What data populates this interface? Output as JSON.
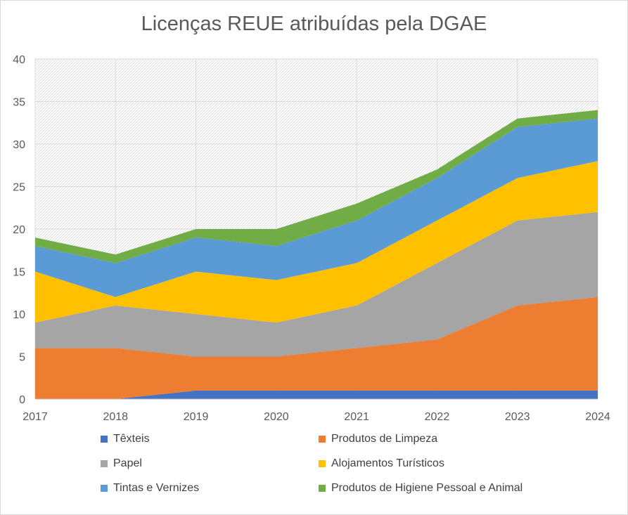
{
  "chart_data": {
    "type": "area",
    "stacked": true,
    "title": "Licenças REUE atribuídas pela DGAE",
    "xlabel": "",
    "ylabel": "",
    "categories": [
      "2017",
      "2018",
      "2019",
      "2020",
      "2021",
      "2022",
      "2023",
      "2024"
    ],
    "ylim": [
      0,
      40
    ],
    "yticks": [
      0,
      5,
      10,
      15,
      20,
      25,
      30,
      35,
      40
    ],
    "grid": true,
    "legend_position": "bottom",
    "series": [
      {
        "name": "Têxteis",
        "color": "#4472C4",
        "values": [
          0,
          0,
          1,
          1,
          1,
          1,
          1,
          1
        ]
      },
      {
        "name": "Produtos de Limpeza",
        "color": "#ED7D31",
        "values": [
          6,
          6,
          4,
          4,
          5,
          6,
          10,
          11
        ]
      },
      {
        "name": "Papel",
        "color": "#A5A5A5",
        "values": [
          3,
          5,
          5,
          4,
          5,
          9,
          10,
          10
        ]
      },
      {
        "name": "Alojamentos Turísticos",
        "color": "#FFC000",
        "values": [
          6,
          1,
          5,
          5,
          5,
          5,
          5,
          6
        ]
      },
      {
        "name": "Tintas e Vernizes",
        "color": "#5B9BD5",
        "values": [
          3,
          4,
          4,
          4,
          5,
          5,
          6,
          5
        ]
      },
      {
        "name": "Produtos de Higiene Pessoal e Animal",
        "color": "#70AD47",
        "values": [
          1,
          1,
          1,
          2,
          2,
          1,
          1,
          1
        ]
      }
    ]
  }
}
